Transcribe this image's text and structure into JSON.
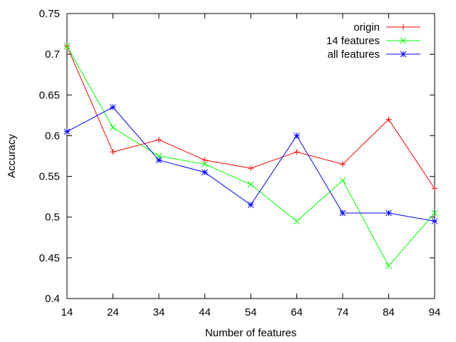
{
  "chart_data": {
    "type": "line",
    "title": "",
    "xlabel": "Number of features",
    "ylabel": "Accuracy",
    "x": [
      14,
      24,
      34,
      44,
      54,
      64,
      74,
      84,
      94
    ],
    "xlim": [
      14,
      94
    ],
    "ylim": [
      0.4,
      0.75
    ],
    "x_ticks": [
      14,
      24,
      34,
      44,
      54,
      64,
      74,
      84,
      94
    ],
    "y_ticks": [
      0.4,
      0.45,
      0.5,
      0.55,
      0.6,
      0.65,
      0.7,
      0.75
    ],
    "y_tick_labels": [
      "0.4",
      "0.45",
      "0.5",
      "0.55",
      "0.6",
      "0.65",
      "0.7",
      "0.75"
    ],
    "grid": false,
    "legend_position": "top-right",
    "series": [
      {
        "name": "origin",
        "color": "#ff0000",
        "marker": "plus",
        "values": [
          0.71,
          0.58,
          0.595,
          0.57,
          0.56,
          0.58,
          0.565,
          0.62,
          0.535
        ]
      },
      {
        "name": "14 features",
        "color": "#00ff00",
        "marker": "cross",
        "values": [
          0.71,
          0.61,
          0.575,
          0.565,
          0.54,
          0.495,
          0.545,
          0.44,
          0.505
        ]
      },
      {
        "name": "all features",
        "color": "#0000ff",
        "marker": "star",
        "values": [
          0.605,
          0.635,
          0.57,
          0.555,
          0.515,
          0.6,
          0.505,
          0.505,
          0.495
        ]
      }
    ]
  }
}
